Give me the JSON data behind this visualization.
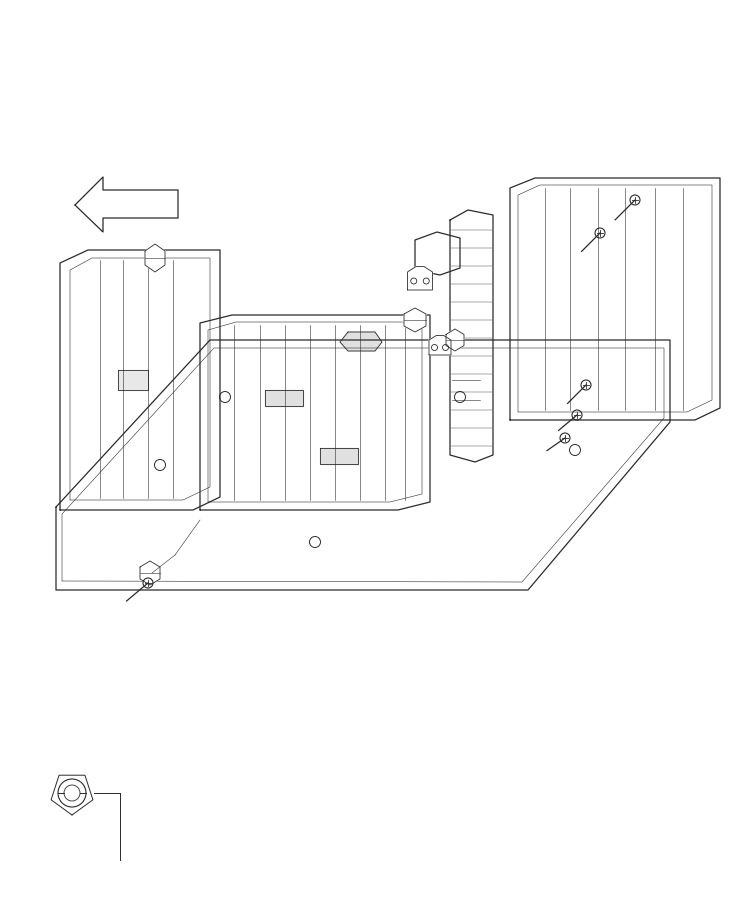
{
  "bg_color": "#ffffff",
  "line_color": "#2a2a2a",
  "lw_main": 0.9,
  "lw_detail": 0.6,
  "lw_thin": 0.4,
  "figsize": [
    7.41,
    9.0
  ],
  "dpi": 100
}
